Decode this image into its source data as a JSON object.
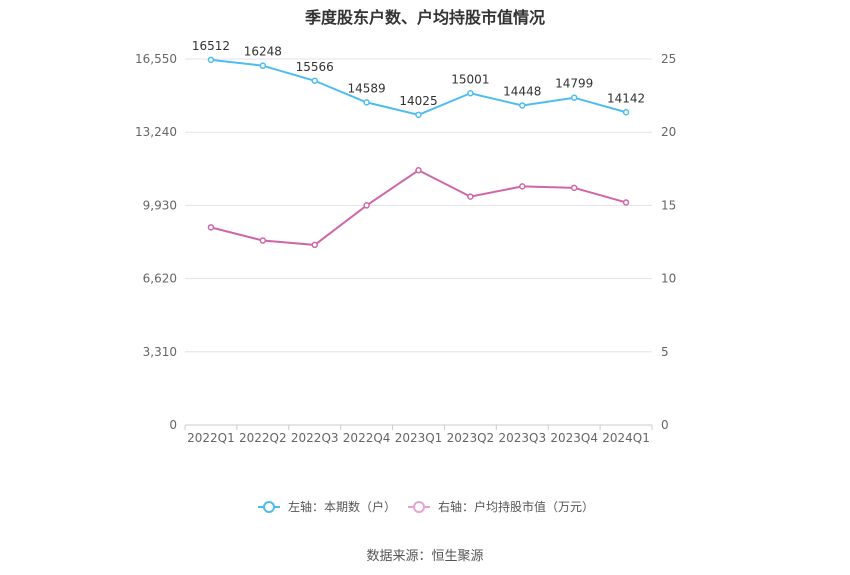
{
  "title": "季度股东户数、户均持股市值情况",
  "source": "数据来源：恒生聚源",
  "colors": {
    "left_series": "#4dbdf0",
    "right_series": "#d066a8",
    "grid": "#e3e3ea",
    "axis_text": "#666666"
  },
  "chart_data": {
    "type": "line",
    "title": "季度股东户数、户均持股市值情况",
    "categories": [
      "2022Q1",
      "2022Q2",
      "2022Q3",
      "2022Q4",
      "2023Q1",
      "2023Q2",
      "2023Q3",
      "2023Q4",
      "2024Q1"
    ],
    "left_axis": {
      "ylim": [
        0,
        16550
      ],
      "ticks": [
        0,
        3310,
        6620,
        9930,
        13240,
        16550
      ],
      "tick_labels": [
        "0",
        "3,310",
        "6,620",
        "9,930",
        "13,240",
        "16,550"
      ]
    },
    "right_axis": {
      "ylim": [
        0,
        25
      ],
      "ticks": [
        0,
        5,
        10,
        15,
        20,
        25
      ],
      "tick_labels": [
        "0",
        "5",
        "10",
        "15",
        "20",
        "25"
      ]
    },
    "series": [
      {
        "name": "左轴：本期数（户）",
        "axis": "left",
        "color": "#4dbdf0",
        "values": [
          16512,
          16248,
          15566,
          14589,
          14025,
          15001,
          14448,
          14799,
          14142
        ],
        "labels": [
          "16512",
          "16248",
          "15566",
          "14589",
          "14025",
          "15001",
          "14448",
          "14799",
          "14142"
        ]
      },
      {
        "name": "右轴：户均持股市值（万元）",
        "axis": "right",
        "color": "#d066a8",
        "values": [
          13.5,
          12.6,
          12.3,
          15.0,
          17.4,
          15.6,
          16.3,
          16.2,
          15.2
        ]
      }
    ],
    "grid": true,
    "legend_position": "bottom-center"
  }
}
